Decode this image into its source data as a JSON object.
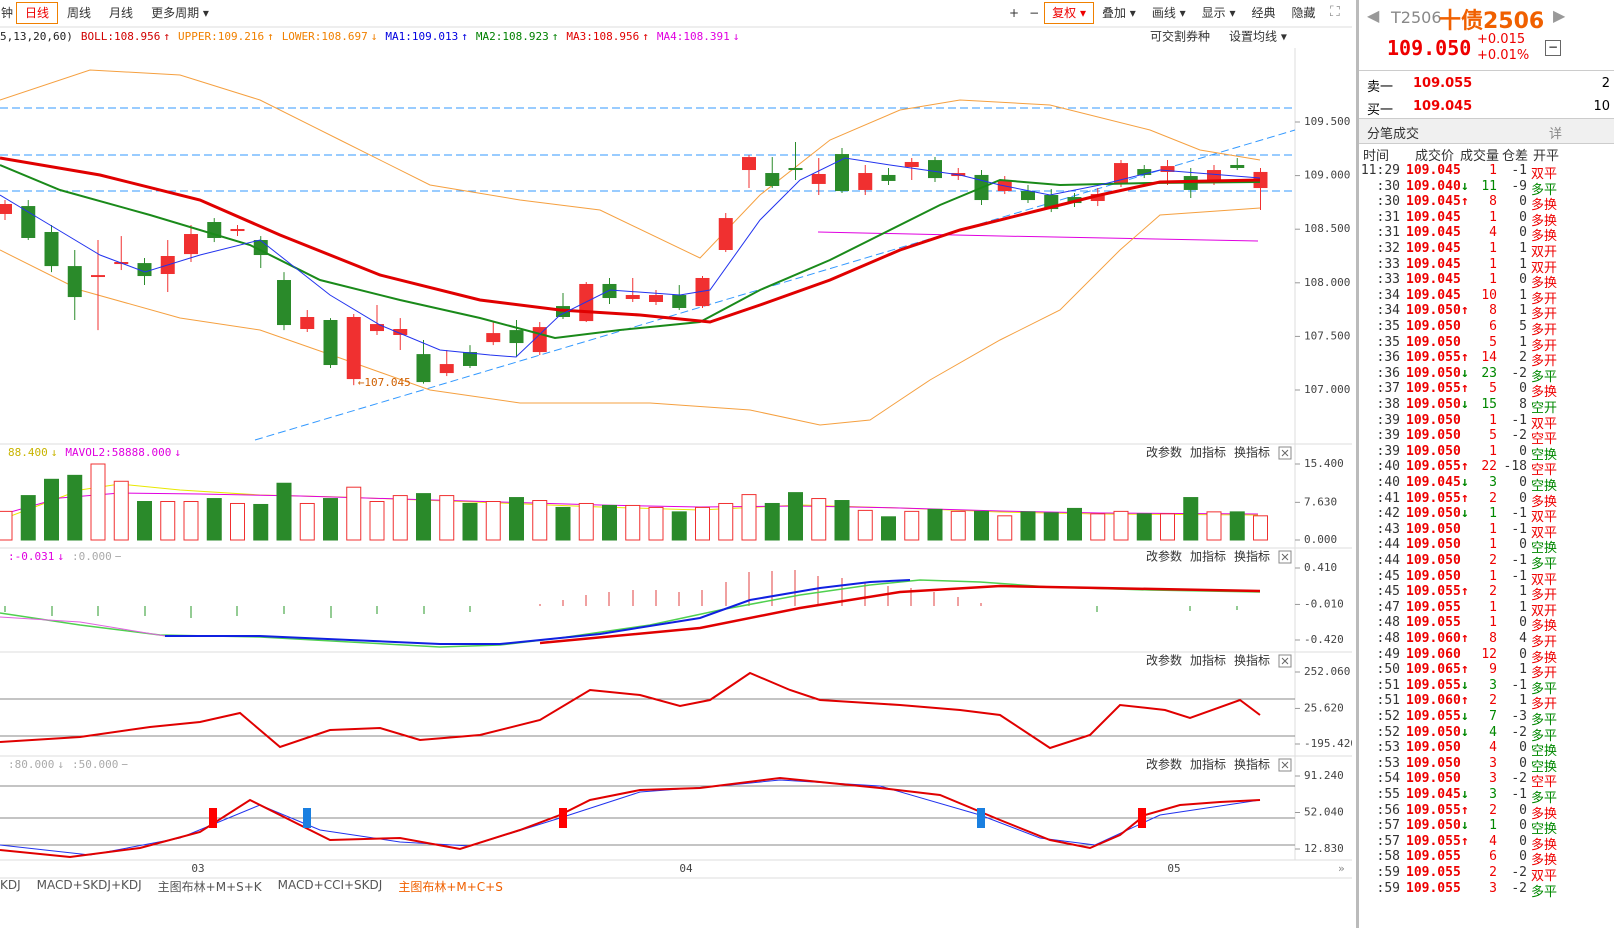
{
  "toolbar": {
    "left": [
      "钟",
      "日线",
      "周线",
      "月线",
      "更多周期"
    ],
    "active_left": 1,
    "right": [
      "+",
      "−",
      "复权",
      "叠加",
      "画线",
      "显示",
      "经典",
      "隐藏"
    ],
    "active_right": 2
  },
  "main_panel": {
    "params": "5,13,20,60)",
    "legend": [
      {
        "text": "BOLL:108.956",
        "arrow": "↑",
        "color": "#d00000"
      },
      {
        "text": "UPPER:109.216",
        "arrow": "↑",
        "color": "#f08000"
      },
      {
        "text": "LOWER:108.697",
        "arrow": "↓",
        "color": "#f08000"
      },
      {
        "text": "MA1:109.013",
        "arrow": "↑",
        "color": "#0000e0"
      },
      {
        "text": "MA2:108.923",
        "arrow": "↑",
        "color": "#008000"
      },
      {
        "text": "MA3:108.956",
        "arrow": "↑",
        "color": "#e00000"
      },
      {
        "text": "MA4:108.391",
        "arrow": "↓",
        "color": "#e000e0"
      }
    ],
    "buttons": [
      "可交割券种",
      "设置均线"
    ],
    "yticks": [
      {
        "value": 109.5,
        "label": "109.500"
      },
      {
        "value": 109,
        "label": "109.000"
      },
      {
        "value": 108.5,
        "label": "108.500"
      },
      {
        "value": 108,
        "label": "108.000"
      },
      {
        "value": 107.5,
        "label": "107.500"
      },
      {
        "value": 107,
        "label": "107.000"
      }
    ],
    "low_annotation": "107.045",
    "candles": [
      [
        108.642,
        108.772,
        108.586,
        108.735
      ],
      [
        108.716,
        108.772,
        108.399,
        108.418
      ],
      [
        108.474,
        108.539,
        108.1,
        108.156
      ],
      [
        108.156,
        108.306,
        107.653,
        107.867
      ],
      [
        108.054,
        108.399,
        107.559,
        108.072
      ],
      [
        108.175,
        108.436,
        108.119,
        108.194
      ],
      [
        108.184,
        108.231,
        107.979,
        108.063
      ],
      [
        108.082,
        108.399,
        107.914,
        108.25
      ],
      [
        108.268,
        108.539,
        108.194,
        108.455
      ],
      [
        108.567,
        108.604,
        108.38,
        108.418
      ],
      [
        108.483,
        108.539,
        108.436,
        108.502
      ],
      [
        108.399,
        108.436,
        108.138,
        108.259
      ],
      [
        108.026,
        108.1,
        107.559,
        107.606
      ],
      [
        107.569,
        107.746,
        107.541,
        107.681
      ],
      [
        107.653,
        107.671,
        107.205,
        107.233
      ],
      [
        107.102,
        107.709,
        107.045,
        107.681
      ],
      [
        107.55,
        107.793,
        107.513,
        107.615
      ],
      [
        107.513,
        107.671,
        107.373,
        107.569
      ],
      [
        107.335,
        107.466,
        107.06,
        107.074
      ],
      [
        107.158,
        107.373,
        107.13,
        107.242
      ],
      [
        107.354,
        107.419,
        107.205,
        107.224
      ],
      [
        107.447,
        107.634,
        107.419,
        107.531
      ],
      [
        107.559,
        107.653,
        107.307,
        107.438
      ],
      [
        107.354,
        107.634,
        107.326,
        107.587
      ],
      [
        107.783,
        107.905,
        107.662,
        107.681
      ],
      [
        107.643,
        108.007,
        107.634,
        107.989
      ],
      [
        107.989,
        108.045,
        107.802,
        107.858
      ],
      [
        107.849,
        108.045,
        107.821,
        107.886
      ],
      [
        107.821,
        107.933,
        107.793,
        107.886
      ],
      [
        107.886,
        107.979,
        107.746,
        107.765
      ],
      [
        107.783,
        108.063,
        107.765,
        108.045
      ],
      [
        108.306,
        108.651,
        108.287,
        108.604
      ],
      [
        109.052,
        109.192,
        108.884,
        109.173
      ],
      [
        109.024,
        109.173,
        108.884,
        108.903
      ],
      [
        109.071,
        109.313,
        108.959,
        109.052
      ],
      [
        108.922,
        109.164,
        108.819,
        109.015
      ],
      [
        109.201,
        109.257,
        108.838,
        108.856
      ],
      [
        108.866,
        109.099,
        108.819,
        109.024
      ],
      [
        109.006,
        109.071,
        108.912,
        108.95
      ],
      [
        109.08,
        109.164,
        108.959,
        109.127
      ],
      [
        109.145,
        109.173,
        108.94,
        108.977
      ],
      [
        108.996,
        109.071,
        108.959,
        109.024
      ],
      [
        109.006,
        109.052,
        108.726,
        108.772
      ],
      [
        108.856,
        108.996,
        108.828,
        108.959
      ],
      [
        108.856,
        108.912,
        108.744,
        108.772
      ],
      [
        108.819,
        108.875,
        108.66,
        108.688
      ],
      [
        108.8,
        108.838,
        108.707,
        108.744
      ],
      [
        108.763,
        108.884,
        108.716,
        108.828
      ],
      [
        108.922,
        109.145,
        108.894,
        109.117
      ],
      [
        109.061,
        109.099,
        108.977,
        109.006
      ],
      [
        109.034,
        109.145,
        108.912,
        109.089
      ],
      [
        108.996,
        109.071,
        108.791,
        108.866
      ],
      [
        108.931,
        109.099,
        108.912,
        109.052
      ],
      [
        109.099,
        109.164,
        109.052,
        109.071
      ],
      [
        108.884,
        109.071,
        108.679,
        109.034
      ]
    ]
  },
  "panel_buttons": [
    "改参数",
    "加指标",
    "换指标"
  ],
  "volume_panel": {
    "legend": [
      {
        "text": "88.400",
        "arrow": "↓",
        "color": "#c8b400"
      },
      {
        "text": "MAVOL2:58888.000",
        "arrow": "↓",
        "color": "#e000e0"
      }
    ],
    "yticks": [
      {
        "value": 15.4,
        "label": "15.400"
      },
      {
        "value": 7.63,
        "label": "7.630"
      },
      {
        "value": 0,
        "label": "0.000"
      }
    ],
    "volumes": [
      5.8,
      9.0,
      12.3,
      13.1,
      15.4,
      11.9,
      7.8,
      7.8,
      7.8,
      8.4,
      7.4,
      7.2,
      11.5,
      7.4,
      8.4,
      10.7,
      7.8,
      9.0,
      9.4,
      9.0,
      7.4,
      7.8,
      8.6,
      8.0,
      6.6,
      7.4,
      7.0,
      7.0,
      6.6,
      5.7,
      6.6,
      7.4,
      9.2,
      7.4,
      9.6,
      8.4,
      8.0,
      6.0,
      4.7,
      5.8,
      6.2,
      5.8,
      5.8,
      4.9,
      5.7,
      5.5,
      6.4,
      5.3,
      5.8,
      5.3,
      5.3,
      8.6,
      5.7,
      5.7,
      4.9
    ]
  },
  "macd_panel": {
    "legend": [
      {
        "text": ":-0.031",
        "arrow": "↓",
        "color": "#e000e0"
      },
      {
        "text": ":0.000",
        "arrow": "−",
        "color": "#aaaaaa"
      }
    ],
    "yticks": [
      {
        "value": 0.41,
        "label": "0.410"
      },
      {
        "value": -0.01,
        "label": "-0.010"
      },
      {
        "value": -0.42,
        "label": "-0.420"
      }
    ]
  },
  "cci_panel": {
    "yticks": [
      {
        "value": 252.06,
        "label": "252.060"
      },
      {
        "value": 25.62,
        "label": "25.620"
      },
      {
        "value": -195.42,
        "label": "-195.420"
      }
    ]
  },
  "kdj_panel": {
    "legend": [
      {
        "text": ":80.000",
        "arrow": "↓",
        "color": "#aaaaaa"
      },
      {
        "text": ":50.000",
        "arrow": "−",
        "color": "#aaaaaa"
      }
    ],
    "yticks": [
      {
        "value": 91.24,
        "label": "91.240"
      },
      {
        "value": 52.04,
        "label": "52.040"
      },
      {
        "value": 12.83,
        "label": "12.830"
      }
    ]
  },
  "x_labels": [
    "03",
    "04",
    "05"
  ],
  "bottom_tabs": [
    "KDJ",
    "MACD+SKDJ+KDJ",
    "主图布林+M+S+K",
    "MACD+CCI+SKDJ",
    "主图布林+M+C+S"
  ],
  "active_tab": 4,
  "quote": {
    "code": "T2506",
    "name": "十债2506",
    "price": "109.050",
    "change": "+0.015",
    "change_pct": "+0.01%",
    "ask": {
      "label": "卖一",
      "price": "109.055",
      "volume": 2
    },
    "bid": {
      "label": "买一",
      "price": "109.045",
      "volume": 10
    },
    "ticks_title": "分笔成交",
    "detail": "详",
    "columns": [
      "时间",
      "成交价",
      "成交量",
      "仓差",
      "开平"
    ],
    "rows": [
      {
        "time": "11:29",
        "price": "109.045",
        "vol": 1,
        "diff": -1,
        "type": "双平"
      },
      {
        "time": ":30",
        "price": "109.040",
        "dir": "↓",
        "vol": 11,
        "diff": -9,
        "type": "多平"
      },
      {
        "time": ":30",
        "price": "109.045",
        "dir": "↑",
        "vol": 8,
        "diff": 0,
        "type": "多换"
      },
      {
        "time": ":31",
        "price": "109.045",
        "vol": 1,
        "diff": 0,
        "type": "多换"
      },
      {
        "time": ":31",
        "price": "109.045",
        "vol": 4,
        "diff": 0,
        "type": "多换"
      },
      {
        "time": ":32",
        "price": "109.045",
        "vol": 1,
        "diff": 1,
        "type": "双开"
      },
      {
        "time": ":33",
        "price": "109.045",
        "vol": 1,
        "diff": 1,
        "type": "双开"
      },
      {
        "time": ":33",
        "price": "109.045",
        "vol": 1,
        "diff": 0,
        "type": "多换"
      },
      {
        "time": ":34",
        "price": "109.045",
        "vol": 10,
        "diff": 1,
        "type": "多开"
      },
      {
        "time": ":34",
        "price": "109.050",
        "dir": "↑",
        "vol": 8,
        "diff": 1,
        "type": "多开"
      },
      {
        "time": ":35",
        "price": "109.050",
        "vol": 6,
        "diff": 5,
        "type": "多开"
      },
      {
        "time": ":35",
        "price": "109.050",
        "vol": 5,
        "diff": 1,
        "type": "多开"
      },
      {
        "time": ":36",
        "price": "109.055",
        "dir": "↑",
        "vol": 14,
        "diff": 2,
        "type": "多开"
      },
      {
        "time": ":36",
        "price": "109.050",
        "dir": "↓",
        "vol": 23,
        "diff": -2,
        "type": "多平"
      },
      {
        "time": ":37",
        "price": "109.055",
        "dir": "↑",
        "vol": 5,
        "diff": 0,
        "type": "多换"
      },
      {
        "time": ":38",
        "price": "109.050",
        "dir": "↓",
        "vol": 15,
        "diff": 8,
        "type": "空开"
      },
      {
        "time": ":39",
        "price": "109.050",
        "vol": 1,
        "diff": -1,
        "type": "双平"
      },
      {
        "time": ":39",
        "price": "109.050",
        "vol": 5,
        "diff": -2,
        "type": "空平"
      },
      {
        "time": ":39",
        "price": "109.050",
        "vol": 1,
        "diff": 0,
        "type": "空换"
      },
      {
        "time": ":40",
        "price": "109.055",
        "dir": "↑",
        "vol": 22,
        "diff": -18,
        "type": "空平"
      },
      {
        "time": ":40",
        "price": "109.045",
        "dir": "↓",
        "vol": 3,
        "diff": 0,
        "type": "空换"
      },
      {
        "time": ":41",
        "price": "109.055",
        "dir": "↑",
        "vol": 2,
        "diff": 0,
        "type": "多换"
      },
      {
        "time": ":42",
        "price": "109.050",
        "dir": "↓",
        "vol": 1,
        "diff": -1,
        "type": "双平"
      },
      {
        "time": ":43",
        "price": "109.050",
        "vol": 1,
        "diff": -1,
        "type": "双平"
      },
      {
        "time": ":44",
        "price": "109.050",
        "vol": 1,
        "diff": 0,
        "type": "空换"
      },
      {
        "time": ":44",
        "price": "109.050",
        "vol": 2,
        "diff": -1,
        "type": "多平"
      },
      {
        "time": ":45",
        "price": "109.050",
        "vol": 1,
        "diff": -1,
        "type": "双平"
      },
      {
        "time": ":45",
        "price": "109.055",
        "dir": "↑",
        "vol": 2,
        "diff": 1,
        "type": "多开"
      },
      {
        "time": ":47",
        "price": "109.055",
        "vol": 1,
        "diff": 1,
        "type": "双开"
      },
      {
        "time": ":48",
        "price": "109.055",
        "vol": 1,
        "diff": 0,
        "type": "多换"
      },
      {
        "time": ":48",
        "price": "109.060",
        "dir": "↑",
        "vol": 8,
        "diff": 4,
        "type": "多开"
      },
      {
        "time": ":49",
        "price": "109.060",
        "vol": 12,
        "diff": 0,
        "type": "多换"
      },
      {
        "time": ":50",
        "price": "109.065",
        "dir": "↑",
        "vol": 9,
        "diff": 1,
        "type": "多开"
      },
      {
        "time": ":51",
        "price": "109.055",
        "dir": "↓",
        "vol": 3,
        "diff": -1,
        "type": "多平"
      },
      {
        "time": ":51",
        "price": "109.060",
        "dir": "↑",
        "vol": 2,
        "diff": 1,
        "type": "多开"
      },
      {
        "time": ":52",
        "price": "109.055",
        "dir": "↓",
        "vol": 7,
        "diff": -3,
        "type": "多平"
      },
      {
        "time": ":52",
        "price": "109.050",
        "dir": "↓",
        "vol": 4,
        "diff": -2,
        "type": "多平"
      },
      {
        "time": ":53",
        "price": "109.050",
        "vol": 4,
        "diff": 0,
        "type": "空换"
      },
      {
        "time": ":53",
        "price": "109.050",
        "vol": 3,
        "diff": 0,
        "type": "空换"
      },
      {
        "time": ":54",
        "price": "109.050",
        "vol": 3,
        "diff": -2,
        "type": "空平"
      },
      {
        "time": ":55",
        "price": "109.045",
        "dir": "↓",
        "vol": 3,
        "diff": -1,
        "type": "多平"
      },
      {
        "time": ":56",
        "price": "109.055",
        "dir": "↑",
        "vol": 2,
        "diff": 0,
        "type": "多换"
      },
      {
        "time": ":57",
        "price": "109.050",
        "dir": "↓",
        "vol": 1,
        "diff": 0,
        "type": "空换"
      },
      {
        "time": ":57",
        "price": "109.055",
        "dir": "↑",
        "vol": 4,
        "diff": 0,
        "type": "多换"
      },
      {
        "time": ":58",
        "price": "109.055",
        "vol": 6,
        "diff": 0,
        "type": "多换"
      },
      {
        "time": ":59",
        "price": "109.055",
        "vol": 2,
        "diff": -2,
        "type": "双平"
      },
      {
        "time": ":59",
        "price": "109.055",
        "vol": 3,
        "diff": -2,
        "type": "多平"
      }
    ]
  }
}
